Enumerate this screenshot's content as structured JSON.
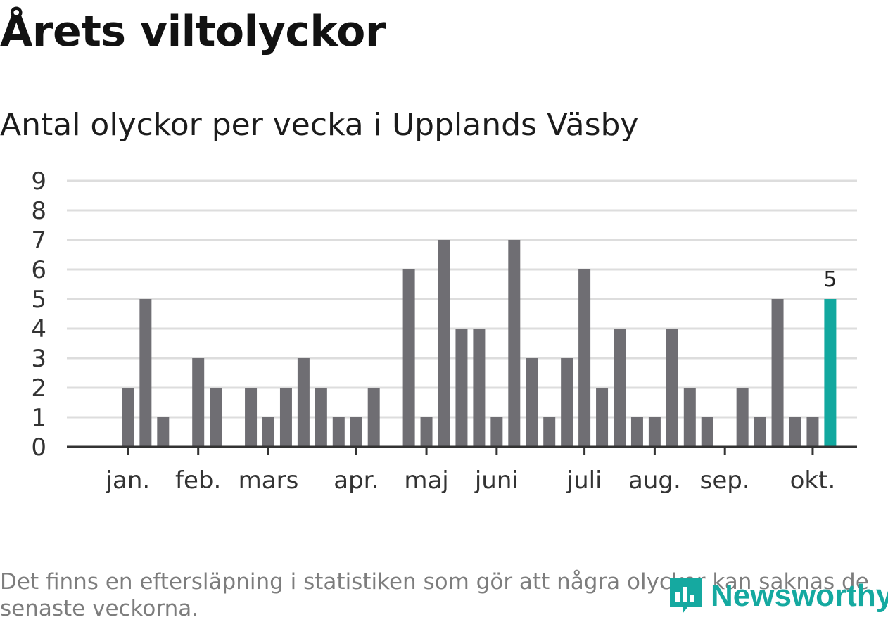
{
  "title": "Årets viltolyckor",
  "subtitle": "Antal olyckor per vecka i Upplands Väsby",
  "footnote": "Det finns en eftersläpning i statistiken som gör att några olyckor kan saknas de senaste veckorna.",
  "logo": {
    "text": "Newsworthy",
    "icon": "newsworthy-logo-icon",
    "color": "#15a9a0"
  },
  "colors": {
    "bar": "#6f6e73",
    "highlight": "#12a89f",
    "grid": "#dddddd",
    "axis": "#333333"
  },
  "chart_data": {
    "type": "bar",
    "title": "Antal olyckor per vecka i Upplands Väsby",
    "xlabel": "",
    "ylabel": "",
    "ylim": [
      0,
      9
    ],
    "yticks": [
      0,
      1,
      2,
      3,
      4,
      5,
      6,
      7,
      8,
      9
    ],
    "grid": true,
    "weeks": [
      1,
      2,
      3,
      4,
      5,
      6,
      7,
      8,
      9,
      10,
      11,
      12,
      13,
      14,
      15,
      16,
      17,
      18,
      19,
      20,
      21,
      22,
      23,
      24,
      25,
      26,
      27,
      28,
      29,
      30,
      31,
      32,
      33,
      34,
      35,
      36,
      37,
      38,
      39,
      40,
      41,
      42,
      43
    ],
    "values": [
      0,
      0,
      2,
      5,
      1,
      0,
      3,
      2,
      0,
      2,
      1,
      2,
      3,
      2,
      1,
      1,
      2,
      0,
      6,
      1,
      7,
      4,
      4,
      1,
      7,
      3,
      1,
      3,
      6,
      2,
      4,
      1,
      1,
      4,
      2,
      1,
      0,
      2,
      1,
      5,
      1,
      1,
      5
    ],
    "month_labels": [
      "jan.",
      "feb.",
      "mars",
      "apr.",
      "maj",
      "juni",
      "juli",
      "aug.",
      "sep.",
      "okt."
    ],
    "month_label_weeks": [
      3,
      7,
      11,
      16,
      20,
      24,
      29,
      33,
      37,
      42
    ],
    "highlight_week": 43,
    "highlight_label": "5"
  }
}
